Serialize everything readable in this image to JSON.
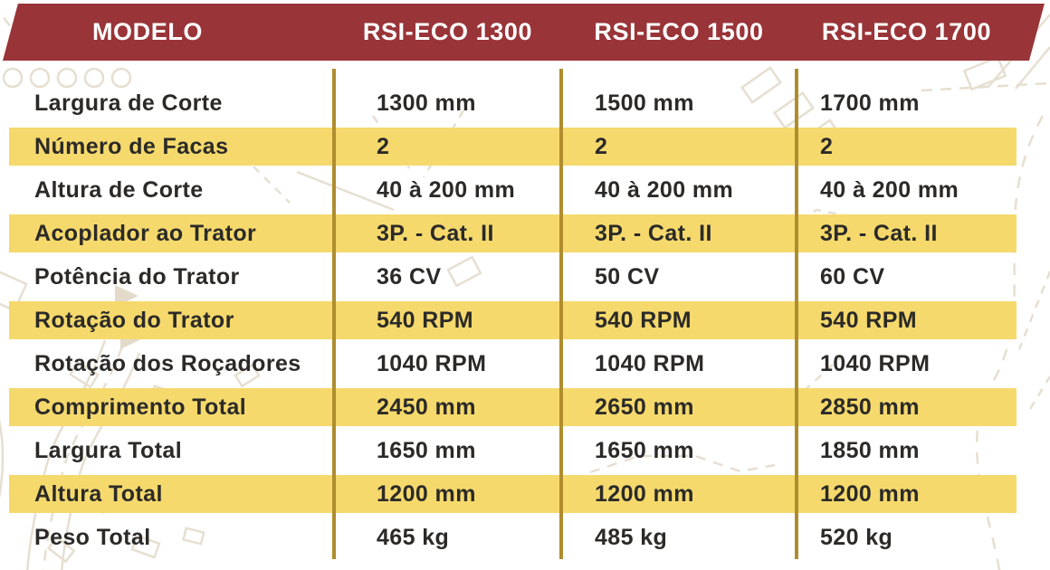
{
  "colors": {
    "header_bg": "#993438",
    "header_text": "#FFFFFF",
    "highlight": "#F5D96C",
    "divider": "#AF8D2E",
    "text": "#2B2A28",
    "pattern": "#E6DFD1"
  },
  "table": {
    "header": {
      "columns": [
        "MODELO",
        "RSI-ECO 1300",
        "RSI-ECO 1500",
        "RSI-ECO 1700"
      ]
    },
    "rows": [
      {
        "label": "Largura de Corte",
        "values": [
          "1300 mm",
          "1500 mm",
          "1700 mm"
        ],
        "highlight": false
      },
      {
        "label": "Número de Facas",
        "values": [
          "2",
          "2",
          "2"
        ],
        "highlight": true
      },
      {
        "label": "Altura de Corte",
        "values": [
          "40 à 200 mm",
          "40 à 200 mm",
          "40 à 200 mm"
        ],
        "highlight": false
      },
      {
        "label": "Acoplador ao Trator",
        "values": [
          "3P. - Cat. II",
          "3P. - Cat. II",
          "3P. - Cat. II"
        ],
        "highlight": true
      },
      {
        "label": "Potência do Trator",
        "values": [
          "36 CV",
          "50 CV",
          "60 CV"
        ],
        "highlight": false
      },
      {
        "label": "Rotação do Trator",
        "values": [
          "540 RPM",
          "540 RPM",
          "540 RPM"
        ],
        "highlight": true
      },
      {
        "label": "Rotação dos Roçadores",
        "values": [
          "1040 RPM",
          "1040 RPM",
          "1040 RPM"
        ],
        "highlight": false
      },
      {
        "label": "Comprimento Total",
        "values": [
          "2450 mm",
          "2650 mm",
          "2850 mm"
        ],
        "highlight": true
      },
      {
        "label": "Largura Total",
        "values": [
          "1650 mm",
          "1650 mm",
          "1850 mm"
        ],
        "highlight": false
      },
      {
        "label": "Altura Total",
        "values": [
          "1200 mm",
          "1200 mm",
          "1200 mm"
        ],
        "highlight": true
      },
      {
        "label": "Peso Total",
        "values": [
          "465 kg",
          "485 kg",
          "520 kg"
        ],
        "highlight": false
      }
    ]
  }
}
